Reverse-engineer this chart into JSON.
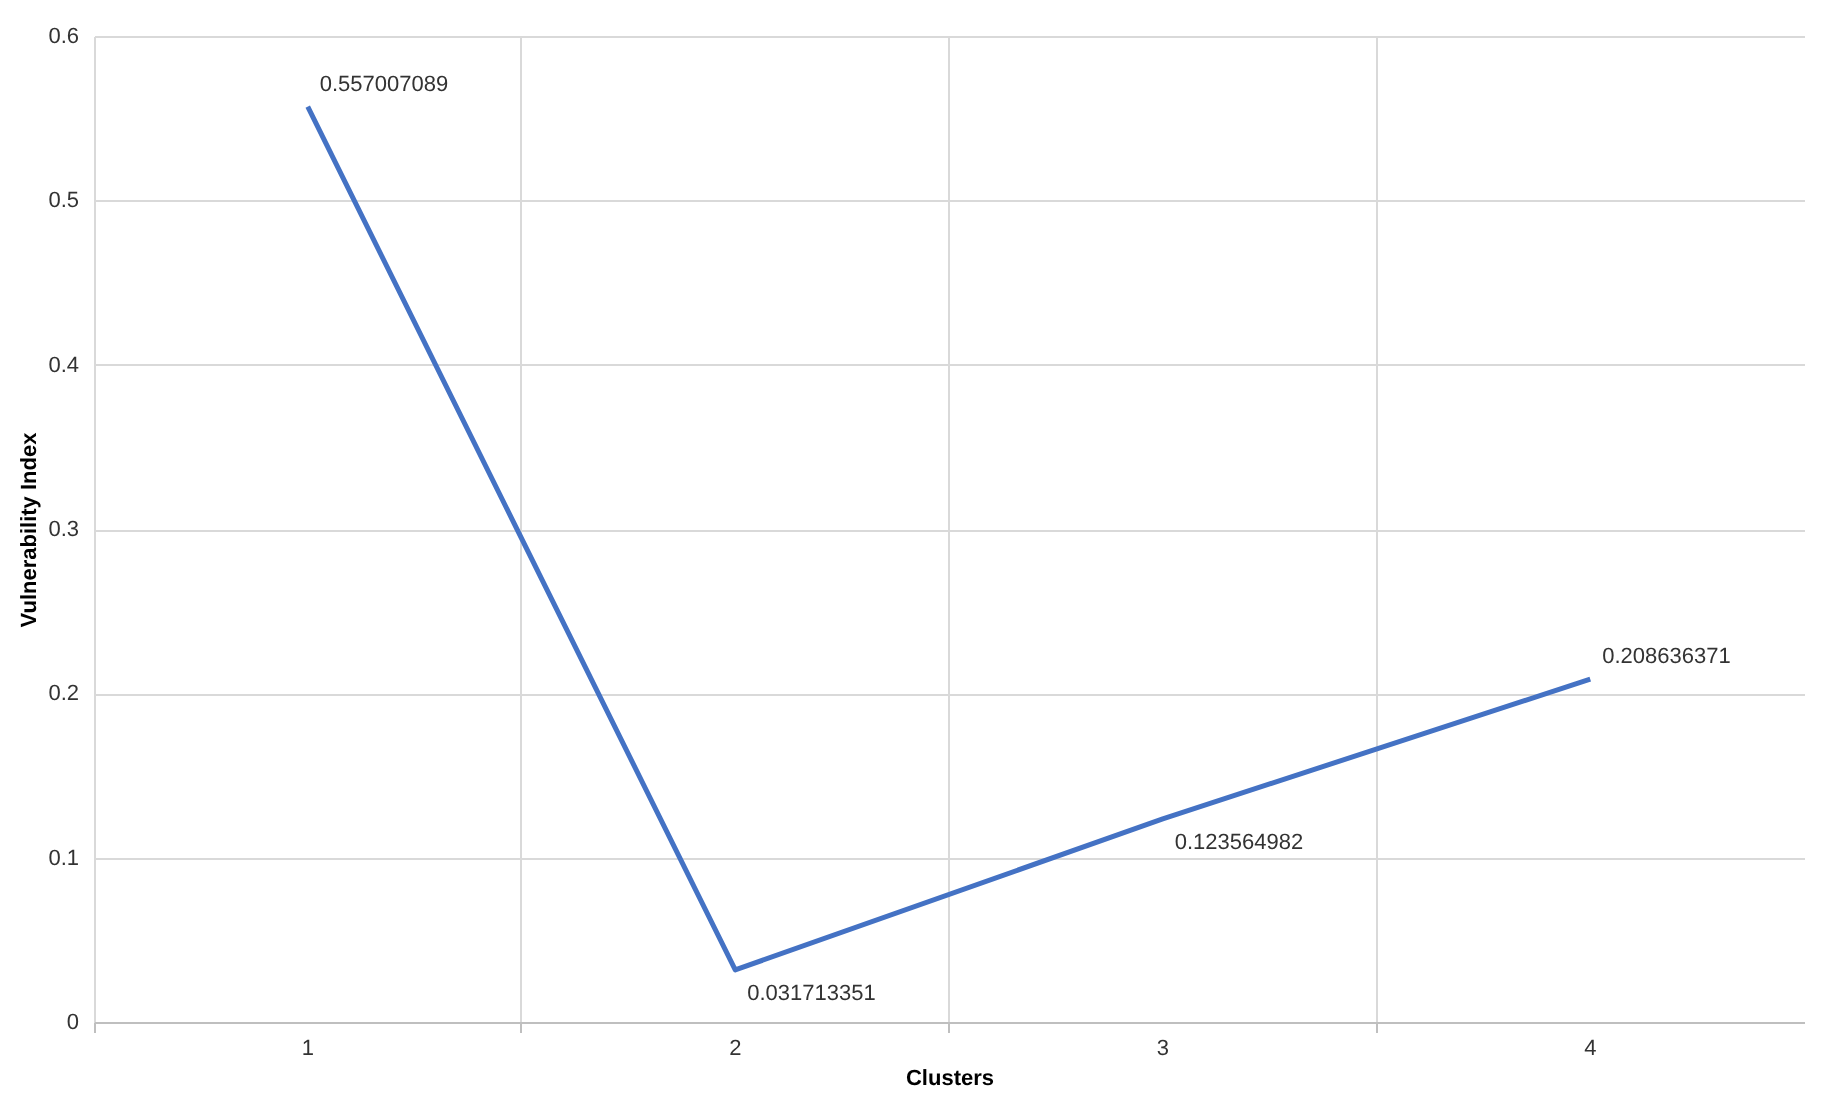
{
  "chart_data": {
    "type": "line",
    "xlabel": "Clusters",
    "ylabel": "Vulnerability Index",
    "categories": [
      "1",
      "2",
      "3",
      "4"
    ],
    "series": [
      {
        "color": "#4472c4",
        "values": [
          0.557007089,
          0.031713351,
          0.123564982,
          0.208636371
        ]
      }
    ],
    "ylim": [
      0,
      0.6
    ],
    "yticks": [
      0,
      0.1,
      0.2,
      0.3,
      0.4,
      0.5,
      0.6
    ],
    "grid": true,
    "data_labels": true,
    "marker": "none",
    "line_style": "solid"
  }
}
